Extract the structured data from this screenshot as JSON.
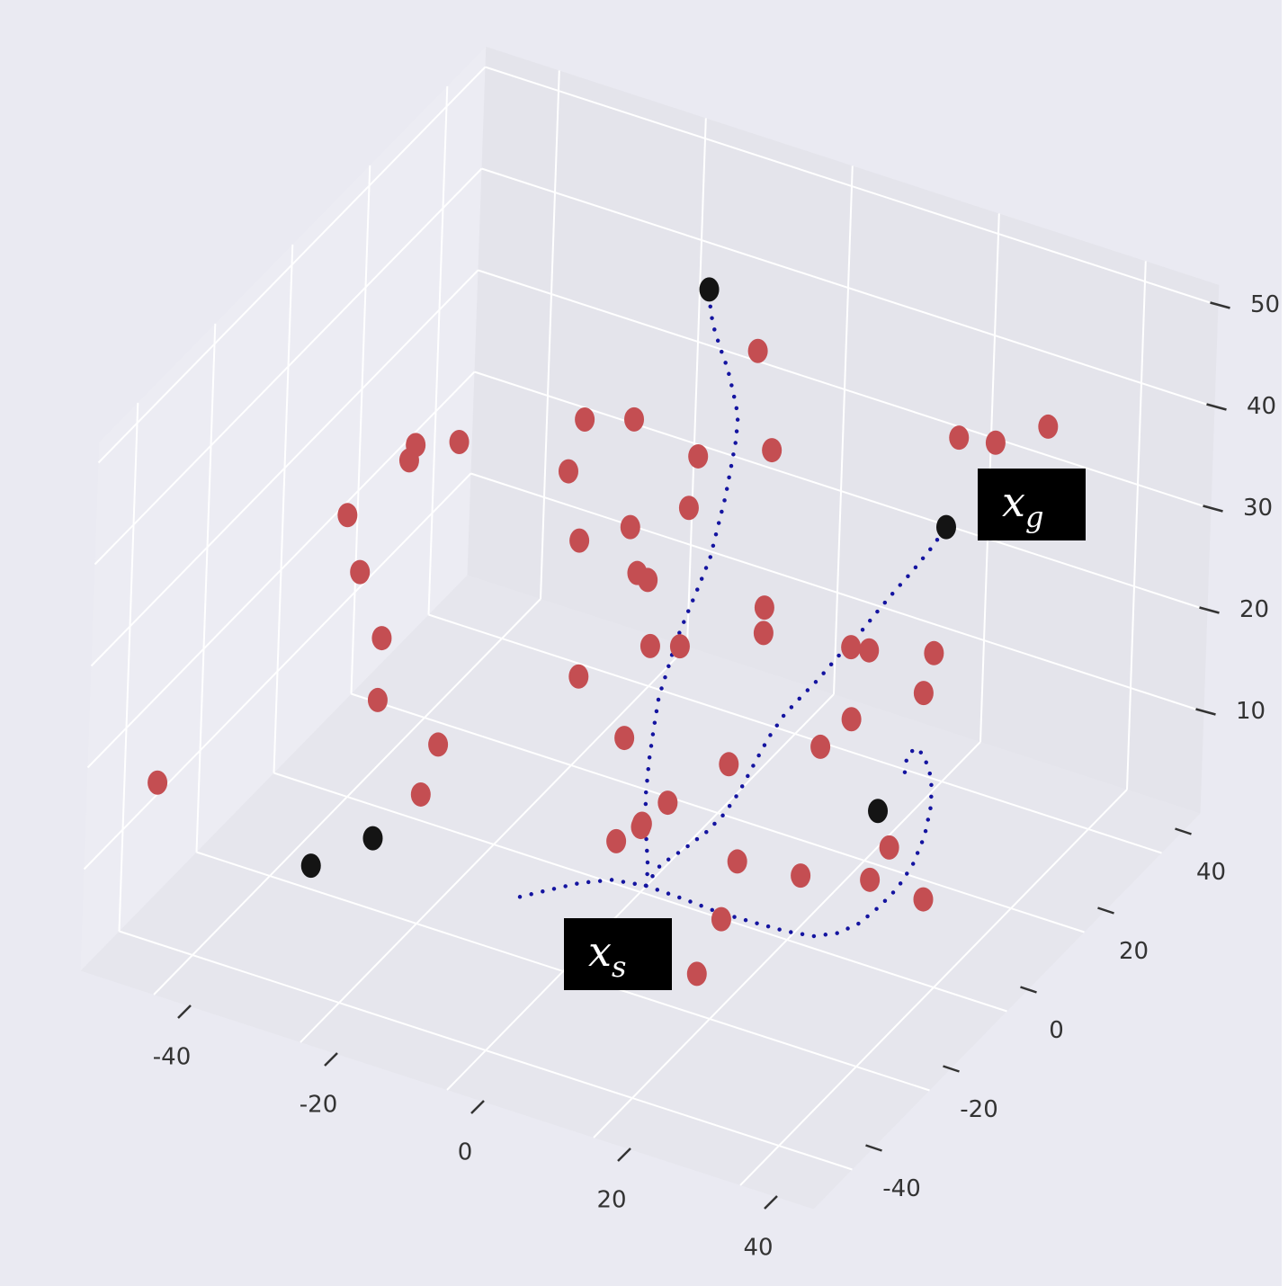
{
  "chart_data": {
    "type": "scatter3d",
    "xlim": [
      -50,
      50
    ],
    "ylim": [
      -50,
      50
    ],
    "zlim": [
      0,
      52
    ],
    "xticks": [
      -40,
      -20,
      0,
      20,
      40
    ],
    "yticks": [
      -40,
      -20,
      0,
      20,
      40
    ],
    "zticks": [
      10,
      20,
      30,
      40,
      50
    ],
    "grid": true,
    "series": [
      {
        "type": "scatter",
        "color": "#c44e52",
        "x": [
          2.0,
          -7.5,
          -2.4,
          -24.9,
          -25.5,
          -20.4,
          -9.0,
          4.4,
          12.0,
          31.3,
          35.1,
          40.5,
          3.6,
          -31.7,
          -2.4,
          -7.6,
          -30.2,
          -1.5,
          -0.4,
          11.8,
          11.8,
          -27.7,
          0.1,
          3.2,
          20.9,
          22.8,
          29.5,
          -7.2,
          -27.9,
          28.6,
          21.2,
          -21.5,
          -2.2,
          18.1,
          8.7,
          -46.9,
          -23.1,
          2.5,
          -0.1,
          -0.2,
          -2.7,
          25.6,
          9.9,
          16.5,
          23.7,
          32.0,
          13.1,
          16.1
        ],
        "y": [
          22.4,
          -4.5,
          -1.4,
          -15.0,
          -15.4,
          -12.3,
          -5.4,
          2.6,
          7.2,
          18.9,
          21.2,
          24.4,
          2.2,
          -19.1,
          -1.4,
          -4.6,
          -18.2,
          -0.9,
          -0.2,
          7.1,
          7.1,
          -16.7,
          0.1,
          1.9,
          12.6,
          13.7,
          17.8,
          -4.3,
          -16.8,
          17.2,
          12.8,
          -12.9,
          -1.4,
          10.9,
          5.2,
          -37.3,
          -13.9,
          1.5,
          0.0,
          -0.1,
          -1.6,
          15.4,
          6.0,
          10.0,
          14.3,
          12.3,
          -4.1,
          -16.1
        ],
        "z": [
          45,
          46.5,
          46.5,
          44,
          42.5,
          44.3,
          41.4,
          42.9,
          43.5,
          44.7,
          44.2,
          45.8,
          37.8,
          37.1,
          35.9,
          34.6,
          31.5,
          31.4,
          30.7,
          28.0,
          25.5,
          25.0,
          24.2,
          24.2,
          24.1,
          23.8,
          23.5,
          21.2,
          18.9,
          19.6,
          17.0,
          14.5,
          15.2,
          14.3,
          12.6,
          14.3,
          9.6,
          8.8,
          6.7,
          6.4,
          5.0,
          4.4,
          3.0,
          1.6,
          1.2,
          2,
          2,
          2
        ]
      },
      {
        "type": "scatter",
        "color": "#141414",
        "x": [
          -4.3,
          30.3,
          24.3,
          -27.9,
          -34.2
        ],
        "y": [
          21.3,
          18.3,
          14.6,
          -16.8,
          -20.6
        ],
        "z": [
          50,
          35.9,
          8.0,
          5.3,
          2.6
        ]
      },
      {
        "type": "line",
        "color": "#1414a0",
        "x": [
          -11.0,
          -9.5,
          -6.3,
          -3.0,
          0.9,
          6.1,
          11.3,
          16.1,
          20.1,
          23.4,
          25.6,
          26.8,
          27.2,
          26.6,
          28.1,
          29.2,
          29.8,
          29.7,
          28.8,
          27.9,
          27.1,
          26.9
        ],
        "y": [
          -10.4,
          -5.7,
          -3.8,
          -1.8,
          -0.4,
          -0.6,
          -1.0,
          -0.7,
          -0.4,
          0.4,
          2.5,
          5.7,
          10.2,
          16.0,
          16.9,
          17.6,
          17.9,
          17.9,
          17.4,
          16.8,
          16.3,
          16.2
        ],
        "z": [
          1,
          0.2,
          0.9,
          1.2,
          1,
          1,
          1,
          1,
          1,
          1,
          1,
          1,
          1,
          0.4,
          2.7,
          5.5,
          8.6,
          11.2,
          13.5,
          14.2,
          13.3,
          11.5
        ]
      },
      {
        "type": "line",
        "color": "#1414a0",
        "x": [
          0.9,
          0.7,
          0.3,
          0.2,
          0.4,
          0.8,
          1.2,
          2.0,
          2.8,
          3.9,
          5.0,
          6.0,
          6.2,
          5.8,
          5.2,
          4.6,
          3.8,
          2.3,
          0.8,
          -0.9,
          -2.5,
          -3.8
        ],
        "y": [
          -0.4,
          0.4,
          0.2,
          0.1,
          0.3,
          0.5,
          0.7,
          1.2,
          1.7,
          2.4,
          3.0,
          3.6,
          5.0,
          7.5,
          9.9,
          12.2,
          14.1,
          15.5,
          16.8,
          17.9,
          19.0,
          20.5
        ],
        "z": [
          1,
          2.3,
          6.4,
          9.5,
          13.0,
          16.3,
          19.2,
          21.9,
          24.8,
          27.6,
          30.3,
          32.9,
          35.5,
          37.3,
          39.1,
          40.8,
          42.3,
          43.8,
          45.2,
          46.5,
          47.9,
          49.3
        ]
      },
      {
        "type": "line",
        "color": "#1414a0",
        "x": [
          0.9,
          2.0,
          4.3,
          6.6,
          8.4,
          9.9,
          11.3,
          12.7,
          14.2,
          15.9,
          17.7,
          19.6,
          21.7,
          23.5,
          25.2,
          27.0,
          28.8,
          30.1
        ],
        "y": [
          -0.4,
          1.2,
          2.6,
          4.0,
          5.0,
          5.9,
          6.8,
          7.7,
          8.6,
          9.6,
          10.6,
          11.8,
          13.1,
          14.1,
          15.2,
          16.3,
          17.4,
          18.2
        ],
        "z": [
          1,
          2.7,
          4.2,
          5.9,
          7.7,
          9.9,
          12.6,
          15.2,
          17.4,
          19.2,
          21.0,
          23.2,
          25.4,
          27.6,
          29.6,
          31.6,
          33.8,
          35.6
        ]
      }
    ],
    "annotations": [
      {
        "text": "x",
        "subscript": "g"
      },
      {
        "text": "x",
        "subscript": "s"
      }
    ]
  }
}
